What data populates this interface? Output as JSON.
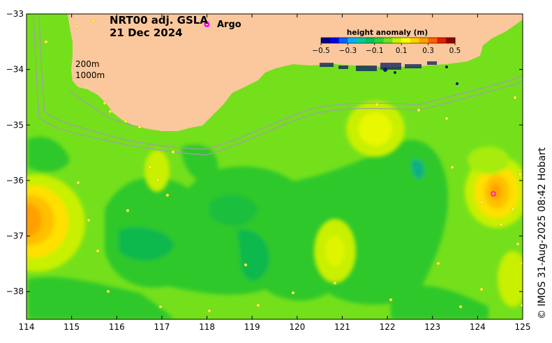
{
  "title": {
    "product": "NRT00 adj. GSLA",
    "date": "21 Dec 2024"
  },
  "argo_legend": {
    "symbol": "o",
    "label": "Argo",
    "color": "#ff00ff"
  },
  "isobaths": {
    "shallow": "200m",
    "deep": "1000m"
  },
  "colorbar": {
    "title": "height anomaly (m)",
    "ticks": [
      "−0.5",
      "−0.3",
      "−0.1",
      "0.1",
      "0.3",
      "0.5"
    ],
    "range": [
      -0.5,
      0.5
    ],
    "colors": [
      "#000080",
      "#0000e0",
      "#0060ff",
      "#00b0f0",
      "#00c8a0",
      "#00c060",
      "#30d030",
      "#70e020",
      "#c8f000",
      "#ffff00",
      "#ffd000",
      "#ffa000",
      "#ff6000",
      "#e02000",
      "#900000"
    ]
  },
  "axes": {
    "x_ticks": [
      "114",
      "115",
      "116",
      "117",
      "118",
      "119",
      "120",
      "121",
      "122",
      "123",
      "124",
      "125"
    ],
    "y_ticks": [
      "−33",
      "−34",
      "−35",
      "−36",
      "−37",
      "−38"
    ],
    "x_range": [
      114,
      125
    ],
    "y_range": [
      -38.5,
      -33
    ]
  },
  "colors": {
    "land": "#fac89c",
    "ocean_base": "#74e01c",
    "ocean_low": "#2ec82c",
    "ocean_lower": "#0fb84a",
    "ocean_high": "#c8f000",
    "ocean_higher": "#ffe000",
    "ocean_peak": "#ffa000",
    "isobath": "#a0a0a0"
  },
  "credit": "© IMOS 31-Aug-2025 08:42 Hobart"
}
